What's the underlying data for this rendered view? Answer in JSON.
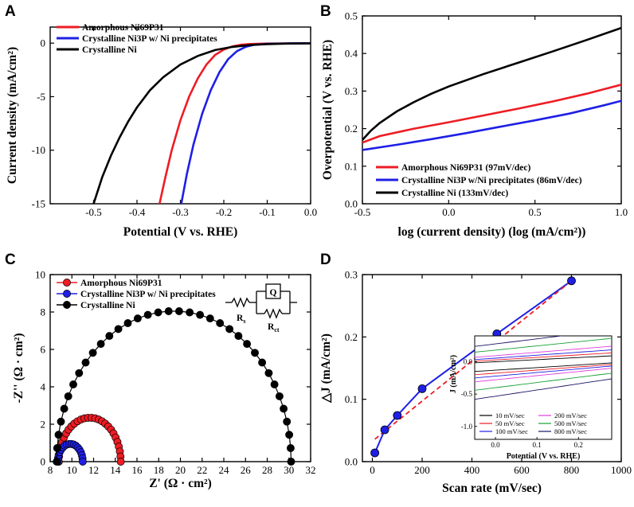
{
  "panels": {
    "A": {
      "label": "A"
    },
    "B": {
      "label": "B"
    },
    "C": {
      "label": "C"
    },
    "D": {
      "label": "D"
    }
  },
  "chart_data": [
    {
      "panel": "A",
      "type": "line",
      "xlabel": "Potential (V vs. RHE)",
      "ylabel": "Current density (mA/cm²)",
      "xlim": [
        -0.6,
        0.0
      ],
      "ylim": [
        -15,
        1.5
      ],
      "xticks": [
        -0.5,
        -0.4,
        -0.3,
        -0.2,
        -0.1,
        0.0
      ],
      "xtick_labels": [
        "-0.5",
        "-0.4",
        "-0.3",
        "-0.2",
        "-0.1",
        "0.0"
      ],
      "yticks": [
        0,
        -5,
        -10,
        -15
      ],
      "ytick_labels": [
        "0",
        "-5",
        "-10",
        "-15"
      ],
      "legend": "top-left",
      "series": [
        {
          "name": "Amorphous Ni69P31",
          "color": "#ee1c24",
          "x": [
            -0.348,
            -0.335,
            -0.32,
            -0.3,
            -0.28,
            -0.26,
            -0.24,
            -0.22,
            -0.2,
            -0.18,
            -0.16,
            -0.14,
            -0.1,
            -0.05,
            0.0
          ],
          "y": [
            -15,
            -12.6,
            -10.0,
            -7.2,
            -5.0,
            -3.3,
            -2.0,
            -1.1,
            -0.6,
            -0.3,
            -0.15,
            -0.08,
            -0.04,
            -0.02,
            -0.01
          ]
        },
        {
          "name": "Crystalline Ni3P  w/ Ni precipitates",
          "color": "#1f1fe6",
          "x": [
            -0.298,
            -0.285,
            -0.27,
            -0.25,
            -0.23,
            -0.21,
            -0.19,
            -0.17,
            -0.15,
            -0.13,
            -0.1,
            -0.05,
            0.0
          ],
          "y": [
            -15,
            -12.2,
            -9.5,
            -6.6,
            -4.4,
            -2.7,
            -1.5,
            -0.75,
            -0.35,
            -0.15,
            -0.06,
            -0.02,
            -0.01
          ]
        },
        {
          "name": "Crystalline Ni",
          "color": "#000000",
          "x": [
            -0.5,
            -0.48,
            -0.46,
            -0.44,
            -0.42,
            -0.4,
            -0.37,
            -0.34,
            -0.3,
            -0.26,
            -0.22,
            -0.18,
            -0.14,
            -0.1,
            -0.05,
            0.0
          ],
          "y": [
            -15,
            -12.5,
            -10.5,
            -8.8,
            -7.3,
            -6.0,
            -4.4,
            -3.2,
            -2.0,
            -1.2,
            -0.65,
            -0.35,
            -0.18,
            -0.09,
            -0.04,
            -0.02
          ]
        }
      ]
    },
    {
      "panel": "B",
      "type": "line",
      "xlabel": "log (current density) (log (mA/cm²))",
      "ylabel": "Overpotential (V vs. RHE)",
      "xlim": [
        -0.5,
        1.0
      ],
      "ylim": [
        0.0,
        0.5
      ],
      "xticks": [
        -0.5,
        0.0,
        0.5,
        1.0
      ],
      "xtick_labels": [
        "-0.5",
        "0.0",
        "0.5",
        "1.0"
      ],
      "yticks": [
        0.0,
        0.1,
        0.2,
        0.3,
        0.4,
        0.5
      ],
      "ytick_labels": [
        "0.0",
        "0.1",
        "0.2",
        "0.3",
        "0.4",
        "0.5"
      ],
      "legend": "bottom-left",
      "series": [
        {
          "name": "Amorphous Ni69P31 (97mV/dec)",
          "color": "#ee1c24",
          "x": [
            -0.5,
            -0.4,
            -0.2,
            0.0,
            0.2,
            0.4,
            0.6,
            0.8,
            1.0
          ],
          "y": [
            0.163,
            0.18,
            0.2,
            0.217,
            0.235,
            0.253,
            0.272,
            0.293,
            0.317
          ]
        },
        {
          "name": "Crystalline Ni3P w/Ni precipitates (86mV/dec)",
          "color": "#1f1fe6",
          "x": [
            -0.5,
            -0.3,
            -0.1,
            0.1,
            0.3,
            0.5,
            0.7,
            0.9,
            1.0
          ],
          "y": [
            0.143,
            0.157,
            0.172,
            0.188,
            0.205,
            0.222,
            0.24,
            0.262,
            0.274
          ]
        },
        {
          "name": "Crystalline Ni (133mV/dec)",
          "color": "#000000",
          "x": [
            -0.5,
            -0.45,
            -0.4,
            -0.3,
            -0.2,
            -0.1,
            0.0,
            0.2,
            0.4,
            0.6,
            0.8,
            1.0
          ],
          "y": [
            0.17,
            0.195,
            0.215,
            0.246,
            0.271,
            0.293,
            0.312,
            0.345,
            0.375,
            0.405,
            0.436,
            0.468
          ]
        }
      ]
    },
    {
      "panel": "C",
      "type": "scatter",
      "xlabel": "Z' (Ω · cm²)",
      "ylabel": "-Z'' (Ω · cm²)",
      "xlim": [
        8,
        32
      ],
      "ylim": [
        0,
        10
      ],
      "xticks": [
        8,
        10,
        12,
        14,
        16,
        18,
        20,
        22,
        24,
        26,
        28,
        30,
        32
      ],
      "xtick_labels": [
        "8",
        "10",
        "12",
        "14",
        "16",
        "18",
        "20",
        "22",
        "24",
        "26",
        "28",
        "30",
        "32"
      ],
      "yticks": [
        0,
        2,
        4,
        6,
        8,
        10
      ],
      "ytick_labels": [
        "0",
        "2",
        "4",
        "6",
        "8",
        "10"
      ],
      "legend": "top-left",
      "circuit": {
        "r1": "Rs",
        "r1_sub": "s",
        "r2": "Rct",
        "r2_sub": "ct",
        "box": "Q"
      },
      "series": [
        {
          "name": "Amorphous Ni69P31",
          "color": "#ee1c24",
          "arc": {
            "x_start": 8.8,
            "x_end": 14.5,
            "height": 2.35
          },
          "n": 28
        },
        {
          "name": "Crystalline Ni3P  w/ Ni precipitates",
          "color": "#1f1fe6",
          "arc": {
            "x_start": 8.7,
            "x_end": 11.0,
            "height": 0.95
          },
          "n": 18
        },
        {
          "name": "Crystalline Ni",
          "color": "#000000",
          "arc": {
            "x_start": 8.6,
            "x_end": 30.2,
            "height": 8.05
          },
          "n": 36
        }
      ]
    },
    {
      "panel": "D",
      "type": "scatter",
      "xlabel": "Scan rate (mV/sec)",
      "ylabel": "△J (mA/cm²)",
      "xlim": [
        -40,
        1000
      ],
      "ylim": [
        0.0,
        0.3
      ],
      "xticks": [
        0,
        200,
        400,
        600,
        800,
        1000
      ],
      "xtick_labels": [
        "0",
        "200",
        "400",
        "600",
        "800",
        "1000"
      ],
      "yticks": [
        0.0,
        0.1,
        0.2,
        0.3
      ],
      "ytick_labels": [
        "0.0",
        "0.1",
        "0.2",
        "0.3"
      ],
      "series": [
        {
          "name": "ΔJ",
          "color": "#1f1fe6",
          "x": [
            10,
            50,
            100,
            200,
            500,
            800
          ],
          "y": [
            0.014,
            0.051,
            0.074,
            0.117,
            0.205,
            0.29
          ]
        }
      ],
      "fit": {
        "color": "#ee1c24",
        "x": [
          10,
          800
        ],
        "y": [
          0.036,
          0.29
        ]
      },
      "inset": {
        "xlabel": "Potential (V vs. RHE)",
        "ylabel": "J (mA/cm²)",
        "xlim": [
          -0.05,
          0.28
        ],
        "ylim": [
          -1.2,
          0.4
        ],
        "xticks": [
          0.0,
          0.1,
          0.2
        ],
        "xtick_labels": [
          "0.0",
          "0.1",
          "0.2"
        ],
        "yticks": [
          0.0,
          -0.5,
          -1.0
        ],
        "ytick_labels": [
          "0.0",
          "-0.5",
          "-1.0"
        ],
        "legend_left": [
          "10 mV/sec",
          "50 mV/sec",
          "100 mV/sec"
        ],
        "legend_right": [
          "200 mV/sec",
          "500 mV/sec",
          "800 mV/sec"
        ],
        "curves": [
          {
            "name": "10 mV/sec",
            "color": "#000000",
            "half_width": 0.03,
            "slope": 0.5
          },
          {
            "name": "50 mV/sec",
            "color": "#ee1c24",
            "half_width": 0.06,
            "slope": 0.6
          },
          {
            "name": "100 mV/sec",
            "color": "#1f1fe6",
            "half_width": 0.09,
            "slope": 0.7
          },
          {
            "name": "200 mV/sec",
            "color": "#e040d8",
            "half_width": 0.13,
            "slope": 0.8
          },
          {
            "name": "500 mV/sec",
            "color": "#16a035",
            "half_width": 0.22,
            "slope": 1.0
          },
          {
            "name": "800 mV/sec",
            "color": "#1b1464",
            "half_width": 0.32,
            "slope": 1.2
          }
        ]
      }
    }
  ]
}
